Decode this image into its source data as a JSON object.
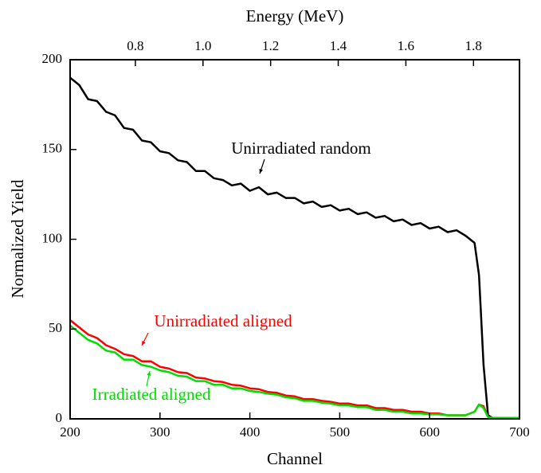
{
  "chart_data": {
    "type": "line",
    "xlabel": "Channel",
    "ylabel": "Normalized Yield",
    "x2label": "Energy (MeV)",
    "x": [
      200,
      210,
      220,
      230,
      240,
      250,
      260,
      270,
      280,
      290,
      300,
      310,
      320,
      330,
      340,
      350,
      360,
      370,
      380,
      390,
      400,
      410,
      420,
      430,
      440,
      450,
      460,
      470,
      480,
      490,
      500,
      510,
      520,
      530,
      540,
      550,
      560,
      570,
      580,
      590,
      600,
      610,
      620,
      630,
      640,
      650,
      655,
      660,
      665,
      670,
      680,
      690,
      700
    ],
    "series": [
      {
        "name": "Unirradiated random",
        "color": "#000000",
        "values": [
          190,
          186,
          178,
          177,
          171,
          169,
          162,
          161,
          155,
          154,
          149,
          148,
          144,
          143,
          138,
          138,
          134,
          133,
          130,
          131,
          127,
          129,
          125,
          126,
          123,
          123,
          120,
          121,
          118,
          119,
          116,
          117,
          114,
          115,
          112,
          113,
          110,
          111,
          108,
          109,
          106,
          107,
          104,
          105,
          102,
          98,
          80,
          30,
          2,
          0.5,
          0.3,
          0.3,
          0.3
        ]
      },
      {
        "name": "Unirradiated aligned",
        "color": "#ff0000",
        "values": [
          55,
          51,
          47,
          45,
          41,
          39,
          36,
          35,
          32,
          32,
          29,
          28,
          26,
          25.5,
          23,
          22.5,
          21,
          20.5,
          19,
          18.5,
          17,
          16.5,
          15,
          14.5,
          13,
          12.5,
          11,
          11,
          10,
          9.5,
          8.5,
          8.5,
          7.5,
          7.5,
          6,
          6,
          5,
          5,
          4,
          4,
          3,
          3,
          2,
          2,
          2,
          4,
          8,
          7,
          1,
          0.5,
          0.5,
          0.5,
          0.5
        ]
      },
      {
        "name": "Irradiated aligned",
        "color": "#00dd00",
        "values": [
          52,
          48,
          44,
          42,
          38,
          37,
          33,
          33,
          30,
          29,
          27,
          26,
          24,
          23.5,
          21,
          21,
          19,
          19,
          17,
          17,
          15.5,
          15,
          14,
          13.5,
          12,
          11.5,
          10,
          10,
          9,
          8.5,
          7.5,
          7.5,
          6.5,
          6.5,
          5,
          5,
          4,
          4,
          3,
          3,
          2.5,
          2.5,
          2,
          2,
          2,
          4,
          8,
          6,
          1,
          0.5,
          0.5,
          0.5,
          0.5
        ]
      }
    ],
    "xlim": [
      200,
      700
    ],
    "xticks": [
      200,
      300,
      400,
      500,
      600,
      700
    ],
    "ylim": [
      0,
      200
    ],
    "yticks": [
      0,
      50,
      100,
      150,
      200
    ],
    "x2lim": [
      0.607,
      1.936
    ],
    "x2ticks": [
      0.8,
      {
        "value": 1,
        "label": "1.0"
      },
      1.2,
      1.4,
      1.6,
      1.8
    ]
  }
}
